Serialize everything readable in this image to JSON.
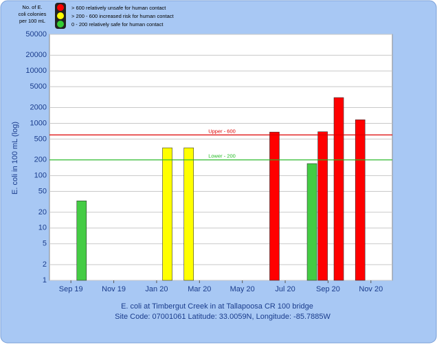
{
  "chart_data": {
    "type": "bar",
    "legend": {
      "title": "No. of E. coli colonies per 100 mL",
      "items": [
        {
          "label": "> 600 relatively unsafe for human contact",
          "color": "#ff0000"
        },
        {
          "label": "> 200 - 600 increased risk for human contact",
          "color": "#ffff00"
        },
        {
          "label": "0 - 200 relatively safe for human contact",
          "color": "#33cc33"
        }
      ]
    },
    "y_label": "E. coli in 100 mL (log)",
    "x_label": "E. coli at Timbergut Creek in at Tallapoosa CR 100 bridge",
    "subtitle": "Site Code: 07001061 Latitude: 33.0059N, Longitude: -85.7885W",
    "log_scale": true,
    "grid": true,
    "x": [
      "2019-09",
      "2020-01",
      "2020-02",
      "2020-06",
      "2020-08",
      "2020-08",
      "2020-09",
      "2020-10"
    ],
    "values": [
      33,
      340,
      340,
      680,
      170,
      690,
      3100,
      1170
    ],
    "colors": [
      "#44cc44",
      "#ffff00",
      "#ffff00",
      "#ff0000",
      "#44cc44",
      "#ff0000",
      "#ff0000",
      "#ff0000"
    ],
    "xlim": [
      "2019-08",
      "2020-12"
    ],
    "xticks": [
      {
        "value": "2019-09",
        "label": "Sep 19"
      },
      {
        "value": "2019-11",
        "label": "Nov 19"
      },
      {
        "value": "2020-01",
        "label": "Jan 20"
      },
      {
        "value": "2020-03",
        "label": "Mar 20"
      },
      {
        "value": "2020-05",
        "label": "May 20"
      },
      {
        "value": "2020-07",
        "label": "Jul 20"
      },
      {
        "value": "2020-09",
        "label": "Sep 20"
      },
      {
        "value": "2020-11",
        "label": "Nov 20"
      }
    ],
    "ylim": [
      1,
      50000
    ],
    "yticks": [
      1,
      2,
      5,
      10,
      20,
      50,
      100,
      200,
      500,
      1000,
      2000,
      5000,
      10000,
      20000,
      50000
    ],
    "reference_lines": [
      {
        "value": 600,
        "label": "Upper - 600",
        "color": "#dd0000"
      },
      {
        "value": 200,
        "label": "Lower - 200",
        "color": "#22bb22"
      }
    ]
  }
}
